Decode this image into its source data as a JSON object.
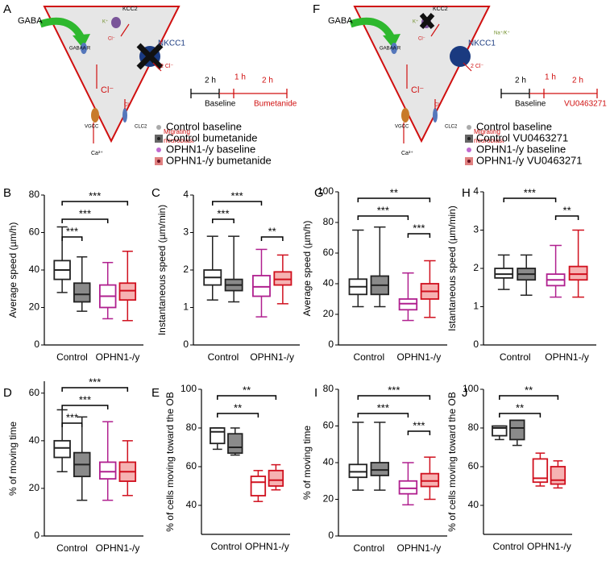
{
  "letters": [
    "A",
    "F",
    "B",
    "C",
    "G",
    "H",
    "D",
    "E",
    "I",
    "J"
  ],
  "diagrams": [
    {
      "labels": [
        "GABA",
        "KCC2",
        "K⁺",
        "Cl⁻",
        "NKCC1",
        "2 Cl⁻",
        "GABAA R",
        "Cl⁻",
        "Cl⁻",
        "VGCC",
        "CLC2",
        "Ca²⁺",
        "Migrating",
        "neuroblast"
      ],
      "timeline": [
        "2 h",
        "1 h",
        "2 h",
        "Baseline",
        "Bumetanide"
      ],
      "legend": [
        "Control baseline",
        "Control bumetanide",
        "OPHN1-/y baseline",
        "OPHN1-/y bumetanide"
      ]
    },
    {
      "labels": [
        "GABA",
        "KCC2",
        "K⁺",
        "Cl⁻",
        "NKCC1",
        "2 Cl⁻",
        "GABAA R",
        "Cl⁻",
        "Cl⁻",
        "VGCC",
        "CLC2",
        "Ca²⁺",
        "Migrating",
        "neuroblast",
        "Na⁺/K⁺"
      ],
      "timeline": [
        "2 h",
        "1 h",
        "2 h",
        "Baseline",
        "VU0463271"
      ],
      "legend": [
        "Control baseline",
        "Control VU0463271",
        "OPHN1-/y baseline",
        "OPHN1-/y VU0463271"
      ]
    }
  ],
  "chart_data": [
    {
      "type": "box",
      "ylabel": "Average speed (µm/h)",
      "groups": [
        "Control",
        "OPHN1-/y"
      ],
      "ylim": [
        0,
        80
      ],
      "yticks": [
        0,
        20,
        40,
        60,
        80
      ],
      "boxes": [
        {
          "color": "#222",
          "fill": "#ffffff",
          "min": 28,
          "q1": 35,
          "median": 40,
          "q3": 45,
          "max": 63
        },
        {
          "color": "#222",
          "fill": "#8a8a8a",
          "min": 18,
          "q1": 23,
          "median": 27,
          "q3": 33,
          "max": 47
        },
        {
          "color": "#b0208f",
          "fill": "#ffffff",
          "min": 14,
          "q1": 20,
          "median": 26,
          "q3": 32,
          "max": 44
        },
        {
          "color": "#d0101e",
          "fill": "#f6b2b2",
          "min": 13,
          "q1": 24,
          "median": 29,
          "q3": 33,
          "max": 50
        }
      ],
      "annotations": [
        {
          "text": "***",
          "from": 0,
          "to": 3
        },
        {
          "text": "***",
          "from": 0,
          "to": 2
        },
        {
          "text": "***",
          "from": 0,
          "to": 1
        }
      ]
    },
    {
      "type": "box",
      "ylabel": "Instantaneous speed (µm/min)",
      "groups": [
        "Control",
        "OPHN1-/y"
      ],
      "ylim": [
        0,
        4
      ],
      "yticks": [
        0,
        1,
        2,
        3,
        4
      ],
      "boxes": [
        {
          "color": "#222",
          "fill": "#ffffff",
          "min": 1.2,
          "q1": 1.6,
          "median": 1.8,
          "q3": 2.0,
          "max": 2.9
        },
        {
          "color": "#222",
          "fill": "#8a8a8a",
          "min": 1.15,
          "q1": 1.45,
          "median": 1.6,
          "q3": 1.75,
          "max": 2.9
        },
        {
          "color": "#b0208f",
          "fill": "#ffffff",
          "min": 0.75,
          "q1": 1.3,
          "median": 1.55,
          "q3": 1.85,
          "max": 2.55
        },
        {
          "color": "#d0101e",
          "fill": "#f6b2b2",
          "min": 1.1,
          "q1": 1.6,
          "median": 1.75,
          "q3": 1.95,
          "max": 2.4
        }
      ],
      "annotations": [
        {
          "text": "***",
          "from": 0,
          "to": 2
        },
        {
          "text": "***",
          "from": 0,
          "to": 1
        },
        {
          "text": "**",
          "from": 2,
          "to": 3
        }
      ]
    },
    {
      "type": "box",
      "ylabel": "Average speed (µm/h)",
      "groups": [
        "Control",
        "OPHN1-/y"
      ],
      "ylim": [
        0,
        100
      ],
      "yticks": [
        0,
        20,
        40,
        60,
        80,
        100
      ],
      "boxes": [
        {
          "color": "#222",
          "fill": "#ffffff",
          "min": 25,
          "q1": 33,
          "median": 38,
          "q3": 43,
          "max": 75
        },
        {
          "color": "#222",
          "fill": "#8a8a8a",
          "min": 25,
          "q1": 33,
          "median": 39,
          "q3": 45,
          "max": 77
        },
        {
          "color": "#b0208f",
          "fill": "#ffffff",
          "min": 16,
          "q1": 23,
          "median": 27,
          "q3": 30,
          "max": 47
        },
        {
          "color": "#d0101e",
          "fill": "#f6b2b2",
          "min": 18,
          "q1": 30,
          "median": 35,
          "q3": 40,
          "max": 55
        }
      ],
      "annotations": [
        {
          "text": "**",
          "from": 0,
          "to": 3
        },
        {
          "text": "***",
          "from": 0,
          "to": 2
        },
        {
          "text": "***",
          "from": 2,
          "to": 3
        }
      ]
    },
    {
      "type": "box",
      "ylabel": "Istantaneous speed (µm/min)",
      "groups": [
        "Control",
        "OPHN1-/y"
      ],
      "ylim": [
        0,
        4
      ],
      "yticks": [
        0,
        1,
        2,
        3,
        4
      ],
      "boxes": [
        {
          "color": "#222",
          "fill": "#ffffff",
          "min": 1.45,
          "q1": 1.75,
          "median": 1.85,
          "q3": 2.0,
          "max": 2.35
        },
        {
          "color": "#222",
          "fill": "#8a8a8a",
          "min": 1.3,
          "q1": 1.7,
          "median": 1.85,
          "q3": 2.0,
          "max": 2.35
        },
        {
          "color": "#b0208f",
          "fill": "#ffffff",
          "min": 1.25,
          "q1": 1.55,
          "median": 1.7,
          "q3": 1.85,
          "max": 2.6
        },
        {
          "color": "#d0101e",
          "fill": "#f6b2b2",
          "min": 1.25,
          "q1": 1.7,
          "median": 1.85,
          "q3": 2.05,
          "max": 3.0
        }
      ],
      "annotations": [
        {
          "text": "***",
          "from": 0,
          "to": 2
        },
        {
          "text": "**",
          "from": 2,
          "to": 3
        }
      ]
    },
    {
      "type": "box",
      "ylabel": "% of moving time",
      "groups": [
        "Control",
        "OPHN1-/y"
      ],
      "ylim": [
        0,
        65
      ],
      "yticks": [
        0,
        20,
        40,
        60
      ],
      "boxes": [
        {
          "color": "#222",
          "fill": "#ffffff",
          "min": 27,
          "q1": 33,
          "median": 37,
          "q3": 40,
          "max": 53
        },
        {
          "color": "#222",
          "fill": "#8a8a8a",
          "min": 15,
          "q1": 25,
          "median": 30,
          "q3": 35,
          "max": 50
        },
        {
          "color": "#b0208f",
          "fill": "#ffffff",
          "min": 15,
          "q1": 24,
          "median": 27,
          "q3": 31,
          "max": 48
        },
        {
          "color": "#d0101e",
          "fill": "#f6b2b2",
          "min": 17,
          "q1": 23,
          "median": 27,
          "q3": 31,
          "max": 40
        }
      ],
      "annotations": [
        {
          "text": "***",
          "from": 0,
          "to": 3
        },
        {
          "text": "***",
          "from": 0,
          "to": 2
        },
        {
          "text": "***",
          "from": 0,
          "to": 1
        }
      ]
    },
    {
      "type": "box",
      "ylabel": "% of cells moving toward the OB",
      "groups": [
        "Control",
        "OPHN1-/y"
      ],
      "ylim": [
        25,
        100
      ],
      "yticks": [
        40,
        60,
        80,
        100
      ],
      "boxes": [
        {
          "color": "#222",
          "fill": "#ffffff",
          "min": 69,
          "q1": 72,
          "median": 78,
          "q3": 80,
          "max": 80
        },
        {
          "color": "#222",
          "fill": "#8a8a8a",
          "min": 66,
          "q1": 67,
          "median": 70,
          "q3": 77,
          "max": 80
        },
        {
          "color": "#d0101e",
          "fill": "#ffffff",
          "min": 42,
          "q1": 45,
          "median": 52,
          "q3": 55,
          "max": 58
        },
        {
          "color": "#d0101e",
          "fill": "#f6b2b2",
          "min": 48,
          "q1": 50,
          "median": 53,
          "q3": 58,
          "max": 61
        }
      ],
      "annotations": [
        {
          "text": "**",
          "from": 0,
          "to": 3
        },
        {
          "text": "**",
          "from": 0,
          "to": 2
        }
      ]
    },
    {
      "type": "box",
      "ylabel": "% of moving time",
      "groups": [
        "Control",
        "OPHN1-/y"
      ],
      "ylim": [
        0,
        80
      ],
      "yticks": [
        0,
        20,
        40,
        60,
        80
      ],
      "boxes": [
        {
          "color": "#222",
          "fill": "#ffffff",
          "min": 25,
          "q1": 32,
          "median": 35,
          "q3": 39,
          "max": 62
        },
        {
          "color": "#222",
          "fill": "#8a8a8a",
          "min": 25,
          "q1": 33,
          "median": 36,
          "q3": 40,
          "max": 62
        },
        {
          "color": "#b0208f",
          "fill": "#ffffff",
          "min": 17,
          "q1": 23,
          "median": 26,
          "q3": 30,
          "max": 40
        },
        {
          "color": "#d0101e",
          "fill": "#f6b2b2",
          "min": 20,
          "q1": 27,
          "median": 30,
          "q3": 34,
          "max": 43
        }
      ],
      "annotations": [
        {
          "text": "***",
          "from": 0,
          "to": 3
        },
        {
          "text": "***",
          "from": 0,
          "to": 2
        },
        {
          "text": "***",
          "from": 2,
          "to": 3
        }
      ]
    },
    {
      "type": "box",
      "ylabel": "% of cells moving toward the OB",
      "groups": [
        "Control",
        "OPHN1-/y"
      ],
      "ylim": [
        25,
        100
      ],
      "yticks": [
        40,
        60,
        80,
        100
      ],
      "boxes": [
        {
          "color": "#222",
          "fill": "#ffffff",
          "min": 74,
          "q1": 76,
          "median": 80,
          "q3": 81,
          "max": 81
        },
        {
          "color": "#222",
          "fill": "#8a8a8a",
          "min": 71,
          "q1": 74,
          "median": 80,
          "q3": 84,
          "max": 84
        },
        {
          "color": "#d0101e",
          "fill": "#ffffff",
          "min": 50,
          "q1": 52,
          "median": 54,
          "q3": 64,
          "max": 67
        },
        {
          "color": "#d0101e",
          "fill": "#f6b2b2",
          "min": 49,
          "q1": 51,
          "median": 53,
          "q3": 60,
          "max": 63
        }
      ],
      "annotations": [
        {
          "text": "**",
          "from": 0,
          "to": 3
        },
        {
          "text": "**",
          "from": 0,
          "to": 2
        }
      ]
    }
  ]
}
